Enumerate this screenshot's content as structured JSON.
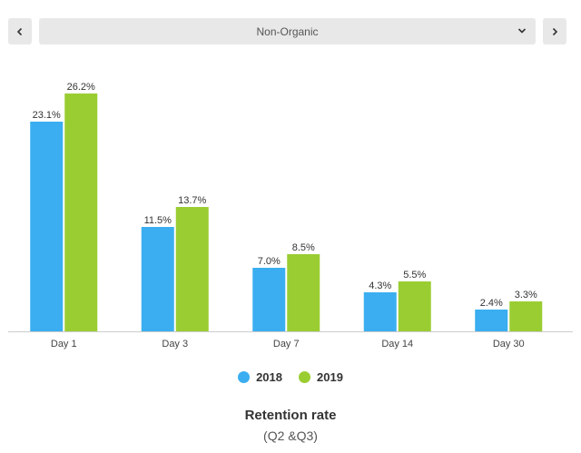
{
  "controls": {
    "prev_icon": "chevron-left-icon",
    "next_icon": "chevron-right-icon",
    "selected_segment": "Non-Organic",
    "dropdown_icon": "chevron-down-icon"
  },
  "colors": {
    "series_2018": "#3aaef0",
    "series_2019": "#9acd32"
  },
  "chart_data": {
    "type": "bar",
    "title": "Retention rate",
    "subtitle": "(Q2 &Q3)",
    "categories": [
      "Day 1",
      "Day 3",
      "Day 7",
      "Day 14",
      "Day 30"
    ],
    "series": [
      {
        "name": "2018",
        "values": [
          23.1,
          11.5,
          7.0,
          4.3,
          2.4
        ],
        "labels": [
          "23.1%",
          "11.5%",
          "7.0%",
          "4.3%",
          "2.4%"
        ]
      },
      {
        "name": "2019",
        "values": [
          26.2,
          13.7,
          8.5,
          5.5,
          3.3
        ],
        "labels": [
          "26.2%",
          "13.7%",
          "8.5%",
          "5.5%",
          "3.3%"
        ]
      }
    ],
    "ylim": [
      0,
      30
    ],
    "grid": false,
    "legend": "bottom-center"
  }
}
